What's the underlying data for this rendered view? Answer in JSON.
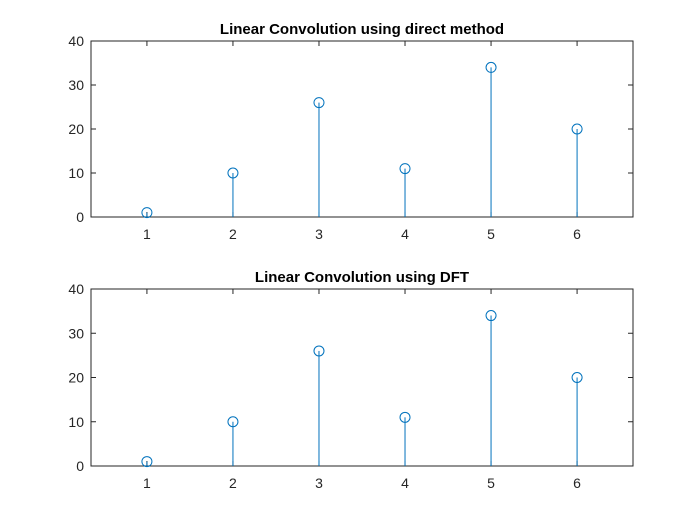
{
  "chart_data": [
    {
      "type": "stem",
      "title": "Linear Convolution using direct method",
      "x": [
        1,
        2,
        3,
        4,
        5,
        6
      ],
      "values": [
        1,
        10,
        26,
        11,
        34,
        20
      ],
      "xlim": [
        0.35,
        6.65
      ],
      "ylim": [
        0,
        40
      ],
      "xticks": [
        1,
        2,
        3,
        4,
        5,
        6
      ],
      "yticks": [
        0,
        10,
        20,
        30,
        40
      ],
      "grid": false,
      "color": "#0072bd"
    },
    {
      "type": "stem",
      "title": "Linear Convolution using DFT",
      "x": [
        1,
        2,
        3,
        4,
        5,
        6
      ],
      "values": [
        1,
        10,
        26,
        11,
        34,
        20
      ],
      "xlim": [
        0.35,
        6.65
      ],
      "ylim": [
        0,
        40
      ],
      "xticks": [
        1,
        2,
        3,
        4,
        5,
        6
      ],
      "yticks": [
        0,
        10,
        20,
        30,
        40
      ],
      "grid": false,
      "color": "#0072bd"
    }
  ]
}
